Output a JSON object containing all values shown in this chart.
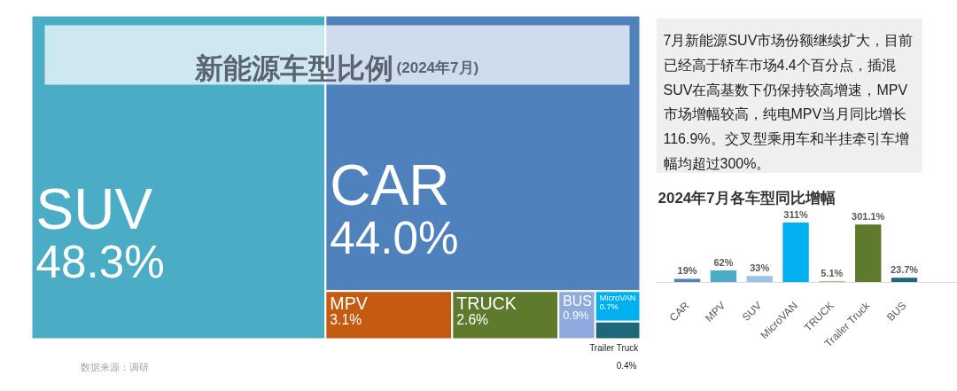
{
  "chart_data": [
    {
      "type": "other",
      "title": "新能源车型比例",
      "subtitle": "(2024年7月)",
      "categories": [
        "SUV",
        "CAR",
        "MPV",
        "TRUCK",
        "BUS",
        "MicroVAN",
        "Trailer Truck"
      ],
      "values": [
        48.3,
        44.0,
        3.1,
        2.6,
        0.9,
        0.7,
        0.4
      ],
      "value_labels": [
        "48.3%",
        "44.0%",
        "3.1%",
        "2.6%",
        "0.9%",
        "0.7%",
        "0.4%"
      ],
      "colors": [
        "#4bacc6",
        "#4f81bd",
        "#c55a11",
        "#5e7a2d",
        "#8faadc",
        "#00b0f0",
        "#1f6678"
      ],
      "annotations": [
        "数据来源：调研"
      ]
    },
    {
      "type": "other",
      "annotations": [
        "7月新能源SUV市场份额继续扩大，目前已经高于轿车市场4.4个百分点，插混SUV在高基数下仍保持较高增速，MPV市场增幅较高，纯电MPV当月同比增长116.9%。交叉型乘用车和半挂牵引车增幅均超过300%。"
      ]
    },
    {
      "type": "bar",
      "title": "2024年7月各车型同比增幅",
      "categories": [
        "CAR",
        "MPV",
        "SUV",
        "MicroVAN",
        "TRUCK",
        "Trailer Truck",
        "BUS"
      ],
      "values": [
        19,
        62,
        33,
        311,
        5.1,
        301.1,
        23.7
      ],
      "value_labels": [
        "19%",
        "62%",
        "33%",
        "311%",
        "5.1%",
        "301.1%",
        "23.7%"
      ],
      "colors": [
        "#4f81bd",
        "#4bacc6",
        "#9dc3e6",
        "#00b0f0",
        "#c55a11",
        "#5e7a2d",
        "#1f6678"
      ]
    }
  ]
}
